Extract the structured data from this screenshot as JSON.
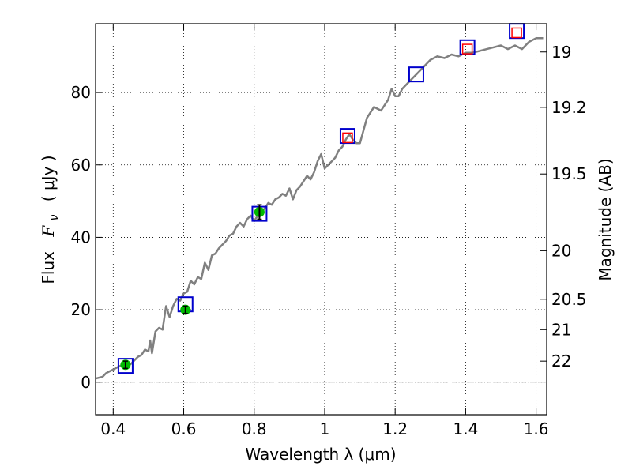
{
  "chart_data": {
    "type": "line",
    "title": "",
    "xlabel": "Wavelength  λ (μm)",
    "ylabel_prefix": "Flux",
    "ylabel_symbol": "F",
    "ylabel_subscript": "ν",
    "ylabel_unit": "(  μJy  )",
    "y2label": "Magnitude (AB)",
    "xlim": [
      0.35,
      1.63
    ],
    "ylim": [
      -9,
      99
    ],
    "grid": true,
    "x_ticks": [
      0.4,
      0.6,
      0.8,
      1.0,
      1.2,
      1.4,
      1.6
    ],
    "x_tick_labels": [
      "0.4",
      "0.6",
      "0.8",
      "1",
      "1.2",
      "1.4",
      "1.6"
    ],
    "y_ticks": [
      0,
      20,
      40,
      60,
      80
    ],
    "y_tick_labels": [
      "0",
      "20",
      "40",
      "60",
      "80"
    ],
    "y2_ticks": [
      {
        "label": "19",
        "flux": 91.2
      },
      {
        "label": "19.2",
        "flux": 75.9
      },
      {
        "label": "19.5",
        "flux": 57.5
      },
      {
        "label": "20",
        "flux": 36.3
      },
      {
        "label": "20.5",
        "flux": 22.9
      },
      {
        "label": "21",
        "flux": 14.5
      },
      {
        "label": "22",
        "flux": 5.8
      }
    ],
    "series": [
      {
        "name": "model-spectrum",
        "kind": "line",
        "color": "#808080",
        "x": [
          0.35,
          0.37,
          0.38,
          0.39,
          0.4,
          0.41,
          0.42,
          0.43,
          0.44,
          0.45,
          0.46,
          0.47,
          0.48,
          0.49,
          0.5,
          0.505,
          0.51,
          0.52,
          0.53,
          0.54,
          0.55,
          0.56,
          0.57,
          0.58,
          0.59,
          0.6,
          0.61,
          0.62,
          0.63,
          0.64,
          0.65,
          0.66,
          0.67,
          0.68,
          0.69,
          0.7,
          0.71,
          0.72,
          0.73,
          0.74,
          0.75,
          0.76,
          0.77,
          0.78,
          0.79,
          0.8,
          0.81,
          0.82,
          0.83,
          0.84,
          0.85,
          0.86,
          0.87,
          0.88,
          0.89,
          0.9,
          0.91,
          0.92,
          0.93,
          0.94,
          0.95,
          0.96,
          0.97,
          0.98,
          0.99,
          1.0,
          1.01,
          1.02,
          1.03,
          1.04,
          1.05,
          1.06,
          1.07,
          1.08,
          1.09,
          1.1,
          1.12,
          1.14,
          1.16,
          1.18,
          1.19,
          1.2,
          1.21,
          1.22,
          1.24,
          1.26,
          1.28,
          1.3,
          1.32,
          1.34,
          1.36,
          1.38,
          1.4,
          1.42,
          1.44,
          1.46,
          1.48,
          1.5,
          1.52,
          1.54,
          1.56,
          1.58,
          1.6,
          1.62
        ],
        "y": [
          1.0,
          1.5,
          2.5,
          3.0,
          3.5,
          4.0,
          4.5,
          5.0,
          5.5,
          5.0,
          6.0,
          7.0,
          7.5,
          9.0,
          8.5,
          11.5,
          8.0,
          14.0,
          15.0,
          14.5,
          21.0,
          18.0,
          21.0,
          23.0,
          22.5,
          24.5,
          25.0,
          28.0,
          27.0,
          29.0,
          28.5,
          33.0,
          31.0,
          35.0,
          35.5,
          37.0,
          38.0,
          39.0,
          40.5,
          41.0,
          43.0,
          44.0,
          43.0,
          45.0,
          46.0,
          44.5,
          46.0,
          47.0,
          48.0,
          49.5,
          49.0,
          50.5,
          51.0,
          52.0,
          51.5,
          53.5,
          50.5,
          53.0,
          54.0,
          55.5,
          57.0,
          56.0,
          58.0,
          61.0,
          63.0,
          59.0,
          60.0,
          61.0,
          62.0,
          64.0,
          65.0,
          67.0,
          68.5,
          67.0,
          66.0,
          66.0,
          73.0,
          76.0,
          75.0,
          78.0,
          81.0,
          79.0,
          79.0,
          81.0,
          83.0,
          85.0,
          87.0,
          89.0,
          90.0,
          89.5,
          90.5,
          90.0,
          91.0,
          91.0,
          91.5,
          92.0,
          92.5,
          93.0,
          92.0,
          93.0,
          92.0,
          94.0,
          95.0,
          95.0
        ]
      },
      {
        "name": "model-photometry",
        "kind": "open-square",
        "color": "#0000cc",
        "x": [
          0.435,
          0.605,
          0.815,
          1.065,
          1.26,
          1.405,
          1.545
        ],
        "y": [
          4.5,
          21.5,
          46.5,
          68.0,
          85.0,
          92.5,
          97.0
        ]
      },
      {
        "name": "observed-optical",
        "kind": "filled-circle-errorbar",
        "color": "#00bb00",
        "x": [
          0.435,
          0.605,
          0.815
        ],
        "y": [
          4.8,
          20.0,
          47.0
        ],
        "err": [
          1.0,
          1.0,
          2.0
        ]
      },
      {
        "name": "observed-nir",
        "kind": "open-square-small",
        "color": "#ff0000",
        "x": [
          1.065,
          1.405,
          1.545
        ],
        "y": [
          67.5,
          92.0,
          96.5
        ]
      }
    ],
    "zero_line": {
      "y": 0,
      "style": "dash-dot"
    }
  }
}
